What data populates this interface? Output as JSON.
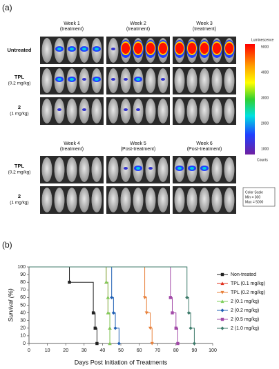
{
  "panel_a": {
    "label": "(a)",
    "columns_top": [
      {
        "week": "Week 1",
        "phase": "(treatment)"
      },
      {
        "week": "Week 2",
        "phase": "(treatment)"
      },
      {
        "week": "Week 3",
        "phase": "(treatment)"
      }
    ],
    "rows_top": [
      {
        "name": "Untreated"
      },
      {
        "name": "TPL",
        "dose": "(0.2 mg/kg)"
      },
      {
        "name": "2",
        "dose": "(1 mg/kg)"
      }
    ],
    "columns_bottom": [
      {
        "week": "Week 4",
        "phase": "(treatment)"
      },
      {
        "week": "Week 5",
        "phase": "(Post-treatment)"
      },
      {
        "week": "Week 6",
        "phase": "(Post-treatment)"
      }
    ],
    "rows_bottom": [
      {
        "name": "TPL",
        "dose": "(0.2 mg/kg)"
      },
      {
        "name": "2",
        "dose": "(1 mg/kg)"
      }
    ],
    "colorbar": {
      "title": "Luminescence",
      "ticks": [
        "5000",
        "4000",
        "3000",
        "2000",
        "1000"
      ],
      "unit": "Counts",
      "scale_title": "Color Scale",
      "min": "Min = 300",
      "max": "Max = 5000"
    }
  },
  "panel_b": {
    "label": "(b)"
  },
  "chart_data": {
    "type": "line",
    "step": true,
    "x_label": "Days Post Initiation of Treatments",
    "y_label": "Survival (%)",
    "xlim": [
      0,
      100
    ],
    "xticks": [
      0,
      10,
      20,
      30,
      40,
      50,
      60,
      70,
      80,
      90,
      100
    ],
    "ylim": [
      0,
      100
    ],
    "yticks": [
      0,
      10,
      20,
      30,
      40,
      50,
      60,
      70,
      80,
      90,
      100
    ],
    "series": [
      {
        "name": "Non-treated",
        "color": "#222222",
        "marker": "square",
        "x": [
          0,
          22,
          35,
          36,
          37
        ],
        "values": [
          100,
          80,
          40,
          20,
          0
        ]
      },
      {
        "name": "TPL (0.1 mg/kg)",
        "color": "#e0301e",
        "marker": "triangle",
        "x": [
          0,
          42,
          43,
          43,
          44,
          44
        ],
        "values": [
          100,
          80,
          60,
          40,
          20,
          0
        ]
      },
      {
        "name": "TPL (0.2 mg/kg)",
        "color": "#e8803a",
        "marker": "triangle-down",
        "x": [
          0,
          63,
          64,
          66,
          67
        ],
        "values": [
          100,
          60,
          40,
          20,
          0
        ]
      },
      {
        "name": "2 (0.1 mg/kg)",
        "color": "#7ccf5a",
        "marker": "triangle",
        "x": [
          0,
          42,
          43,
          43,
          44,
          44
        ],
        "values": [
          100,
          80,
          60,
          40,
          20,
          0
        ]
      },
      {
        "name": "2 (0.2 mg/kg)",
        "color": "#1f5fb4",
        "marker": "diamond",
        "x": [
          0,
          45,
          46,
          47,
          49
        ],
        "values": [
          100,
          60,
          40,
          20,
          0
        ]
      },
      {
        "name": "2 (0.5 mg/kg)",
        "color": "#a24aa8",
        "marker": "square",
        "x": [
          0,
          77,
          78,
          80,
          81
        ],
        "values": [
          100,
          60,
          40,
          20,
          0
        ]
      },
      {
        "name": "2 (1.0 mg/kg)",
        "color": "#3c7a6a",
        "marker": "diamond",
        "x": [
          0,
          86,
          87,
          88,
          90
        ],
        "values": [
          100,
          60,
          40,
          20,
          0
        ]
      }
    ]
  }
}
